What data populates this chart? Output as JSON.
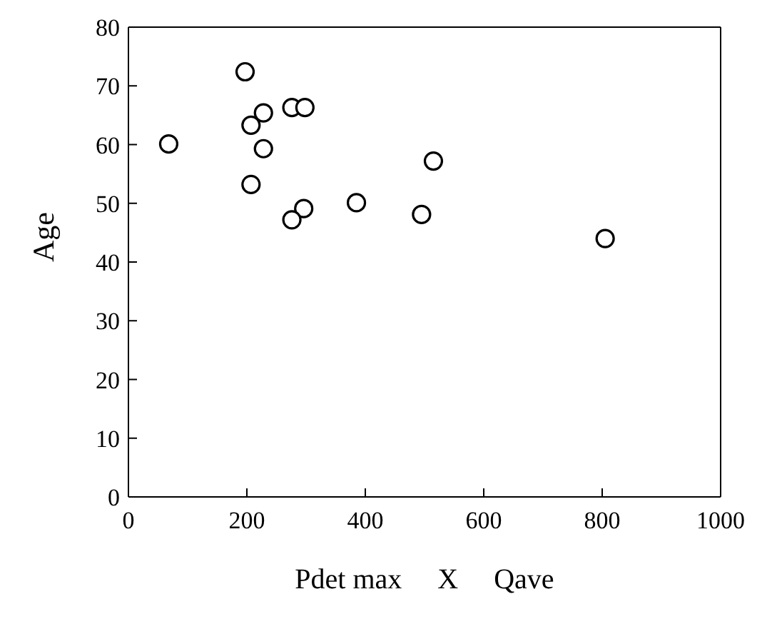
{
  "chart_data": {
    "type": "scatter",
    "xlabel": "Pdet max     X     Qave",
    "ylabel": "Age",
    "x": [
      68,
      197,
      276,
      298,
      228,
      207,
      228,
      207,
      515,
      296,
      276,
      385,
      495,
      805
    ],
    "values": [
      60.1,
      72.4,
      66.3,
      66.3,
      65.4,
      63.3,
      59.3,
      53.2,
      57.2,
      49.1,
      47.2,
      50.1,
      48.1,
      44.0
    ],
    "color": "#ffffff",
    "marker": "circle",
    "grid": false,
    "legend": false,
    "xlim": [
      0,
      1000
    ],
    "xticks": [
      0,
      200,
      400,
      600,
      800,
      1000
    ],
    "ylim": [
      0,
      80
    ],
    "yticks": [
      0,
      10,
      20,
      30,
      40,
      50,
      60,
      70,
      80
    ]
  }
}
